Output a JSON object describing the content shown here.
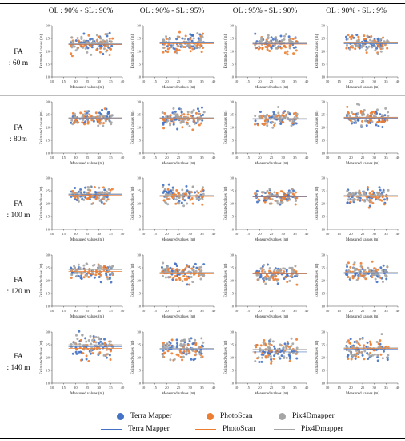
{
  "columns": [
    "OL : 90% - SL : 90%",
    "OL : 90% - SL : 95%",
    "OL : 95% - SL : 90%",
    "OL : 90% - SL : 9%"
  ],
  "rows": [
    {
      "label_top": "FA",
      "label_bottom": ": 60 m"
    },
    {
      "label_top": "FA",
      "label_bottom": ": 80m"
    },
    {
      "label_top": "FA",
      "label_bottom": ": 100 m"
    },
    {
      "label_top": "FA",
      "label_bottom": ": 120 m"
    },
    {
      "label_top": "FA",
      "label_bottom": ": 140 m"
    }
  ],
  "axis": {
    "xlabel": "Measured values (m)",
    "ylabel": "Estimated values (m)"
  },
  "legend": {
    "markers": [
      "Terra Mapper",
      "PhotoScan",
      "Pix4Dmapper"
    ],
    "lines": [
      "Terra Mapper",
      "PhotoScan",
      "Pix4Dmapper"
    ]
  },
  "colors": {
    "terra": "#4472c4",
    "photoscan": "#ed7d31",
    "pix4d": "#a5a5a5"
  },
  "chart_data": {
    "type": "scatter",
    "layout": "grid 5 rows x 4 columns",
    "x_ticks": [
      10,
      15,
      20,
      25,
      30,
      35,
      40
    ],
    "y_ticks": [
      10,
      15,
      20,
      25,
      30
    ],
    "xlim": [
      10,
      40
    ],
    "ylim": [
      10,
      30
    ],
    "xlabel": "Measured values (m)",
    "ylabel": "Estimated values (m)",
    "series": [
      "Terra Mapper",
      "PhotoScan",
      "Pix4Dmapper"
    ],
    "trendlines": [
      "Terra Mapper",
      "PhotoScan",
      "Pix4Dmapper"
    ],
    "panels": [
      {
        "row": 0,
        "col": 0,
        "trend_y": {
          "Terra Mapper": 22.8,
          "PhotoScan": 22.6,
          "Pix4Dmapper": 23.0
        }
      },
      {
        "row": 0,
        "col": 1,
        "trend_y": {
          "Terra Mapper": 23.2,
          "PhotoScan": 23.0,
          "Pix4Dmapper": 23.4
        }
      },
      {
        "row": 0,
        "col": 2,
        "trend_y": {
          "Terra Mapper": 23.0,
          "PhotoScan": 22.8,
          "Pix4Dmapper": 23.2
        }
      },
      {
        "row": 0,
        "col": 3,
        "trend_y": {
          "Terra Mapper": 23.0,
          "PhotoScan": 23.4,
          "Pix4Dmapper": 23.2
        }
      },
      {
        "row": 1,
        "col": 0,
        "trend_y": {
          "Terra Mapper": 23.6,
          "PhotoScan": 23.4,
          "Pix4Dmapper": 23.8
        }
      },
      {
        "row": 1,
        "col": 1,
        "trend_y": {
          "Terra Mapper": 23.6,
          "PhotoScan": 23.5,
          "Pix4Dmapper": 23.8
        }
      },
      {
        "row": 1,
        "col": 2,
        "trend_y": {
          "Terra Mapper": 23.2,
          "PhotoScan": 23.4,
          "Pix4Dmapper": 23.5
        }
      },
      {
        "row": 1,
        "col": 3,
        "trend_y": {
          "Terra Mapper": 23.6,
          "PhotoScan": 23.8,
          "Pix4Dmapper": 24.0
        }
      },
      {
        "row": 2,
        "col": 0,
        "trend_y": {
          "Terra Mapper": 23.5,
          "PhotoScan": 23.3,
          "Pix4Dmapper": 23.8
        }
      },
      {
        "row": 2,
        "col": 1,
        "trend_y": {
          "Terra Mapper": 23.0,
          "PhotoScan": 22.8,
          "Pix4Dmapper": 23.2
        }
      },
      {
        "row": 2,
        "col": 2,
        "trend_y": {
          "Terra Mapper": 22.6,
          "PhotoScan": 22.8,
          "Pix4Dmapper": 23.0
        }
      },
      {
        "row": 2,
        "col": 3,
        "trend_y": {
          "Terra Mapper": 23.0,
          "PhotoScan": 22.8,
          "Pix4Dmapper": 23.3
        }
      },
      {
        "row": 3,
        "col": 0,
        "trend_y": {
          "Terra Mapper": 23.0,
          "PhotoScan": 23.6,
          "Pix4Dmapper": 24.2
        }
      },
      {
        "row": 3,
        "col": 1,
        "trend_y": {
          "Terra Mapper": 23.0,
          "PhotoScan": 22.7,
          "Pix4Dmapper": 23.2
        }
      },
      {
        "row": 3,
        "col": 2,
        "trend_y": {
          "Terra Mapper": 22.8,
          "PhotoScan": 22.6,
          "Pix4Dmapper": 23.0
        }
      },
      {
        "row": 3,
        "col": 3,
        "trend_y": {
          "Terra Mapper": 22.8,
          "PhotoScan": 23.0,
          "Pix4Dmapper": 23.3
        }
      },
      {
        "row": 4,
        "col": 0,
        "trend_y": {
          "Terra Mapper": 24.2,
          "PhotoScan": 23.6,
          "Pix4Dmapper": 25.0
        }
      },
      {
        "row": 4,
        "col": 1,
        "trend_y": {
          "Terra Mapper": 23.4,
          "PhotoScan": 23.0,
          "Pix4Dmapper": 23.6
        }
      },
      {
        "row": 4,
        "col": 2,
        "trend_y": {
          "Terra Mapper": 22.2,
          "PhotoScan": 23.0,
          "Pix4Dmapper": 23.2
        }
      },
      {
        "row": 4,
        "col": 3,
        "trend_y": {
          "Terra Mapper": 23.2,
          "PhotoScan": 23.6,
          "Pix4Dmapper": 23.8
        }
      }
    ]
  }
}
